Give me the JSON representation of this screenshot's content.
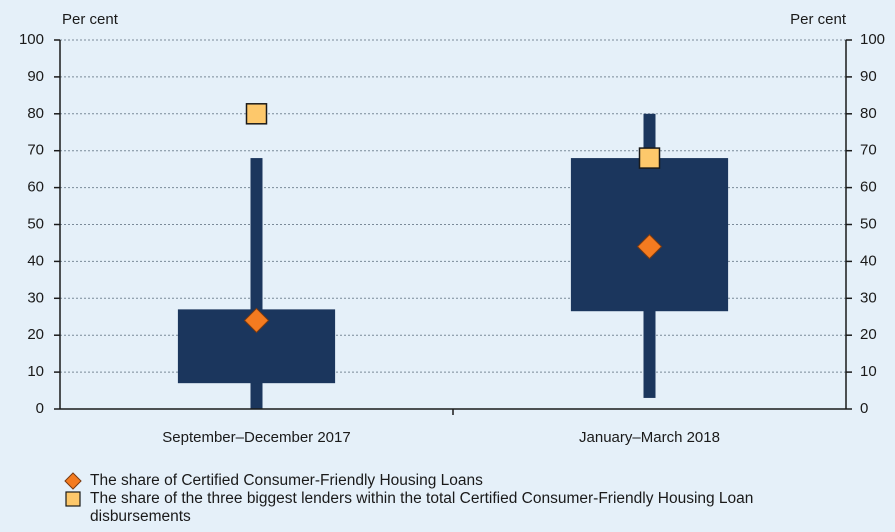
{
  "chart_data": {
    "type": "box",
    "y_label": "Per cent",
    "y2_label": "Per cent",
    "categories": [
      "September–December 2017",
      "January–March 2018"
    ],
    "boxes": {
      "color": "#1b365d",
      "low": [
        0,
        3
      ],
      "q1": [
        7,
        26.5
      ],
      "q3": [
        27,
        68
      ],
      "high": [
        68,
        80
      ]
    },
    "series": [
      {
        "name": "The share of Certified Consumer-Friendly Housing Loans",
        "color": "#f47b20",
        "marker": "diamond",
        "values": [
          24,
          44
        ]
      },
      {
        "name": "The share of the three biggest lenders within the total Certified Consumer-Friendly Housing Loan disbursements",
        "color": "#fdc86b",
        "marker": "square",
        "values": [
          80,
          68
        ]
      }
    ],
    "ylim": [
      0,
      100
    ],
    "yticks": [
      0,
      10,
      20,
      30,
      40,
      50,
      60,
      70,
      80,
      90,
      100
    ],
    "y2lim": [
      0,
      100
    ],
    "y2ticks": [
      0,
      10,
      20,
      30,
      40,
      50,
      60,
      70,
      80,
      90,
      100
    ],
    "grid": true
  }
}
